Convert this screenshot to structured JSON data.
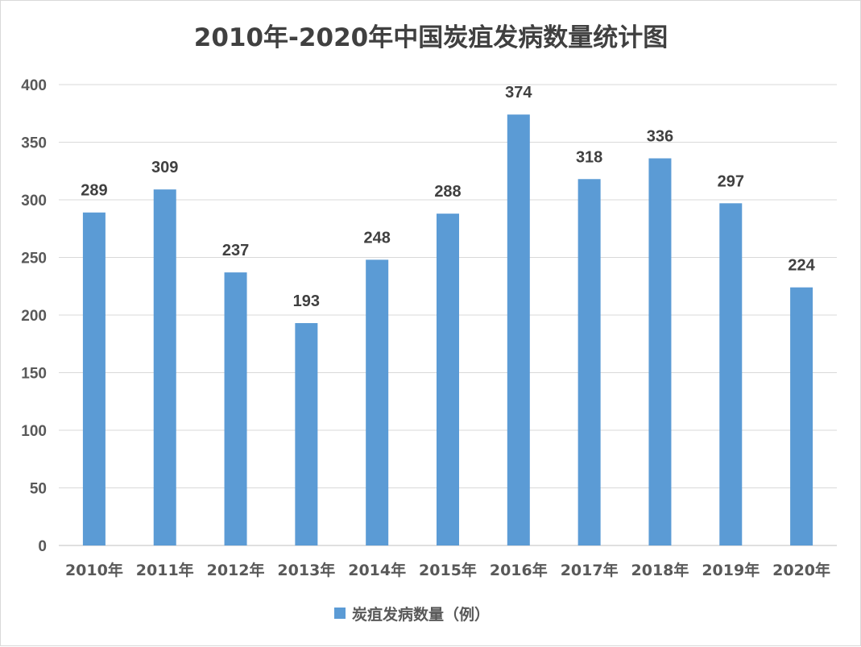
{
  "chart_data": {
    "type": "bar",
    "title": "2010年-2020年中国炭疽发病数量统计图",
    "categories": [
      "2010年",
      "2011年",
      "2012年",
      "2013年",
      "2014年",
      "2015年",
      "2016年",
      "2017年",
      "2018年",
      "2019年",
      "2020年"
    ],
    "series": [
      {
        "name": "炭疽发病数量（例）",
        "values": [
          289,
          309,
          237,
          193,
          248,
          288,
          374,
          318,
          336,
          297,
          224
        ],
        "color": "#5b9bd5"
      }
    ],
    "data_labels": [
      "289",
      "309",
      "237",
      "193",
      "248",
      "288",
      "374",
      "318",
      "336",
      "297",
      "224"
    ],
    "yticks": [
      "0",
      "50",
      "100",
      "150",
      "200",
      "250",
      "300",
      "350",
      "400"
    ],
    "ylim": [
      0,
      400
    ],
    "xlabel": "",
    "ylabel": "",
    "grid": true,
    "legend_position": "bottom"
  }
}
